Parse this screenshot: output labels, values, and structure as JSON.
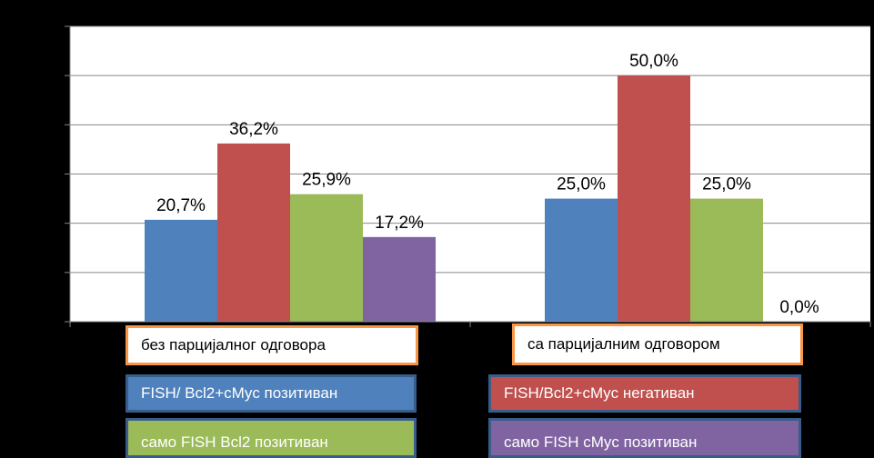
{
  "chart_data": {
    "type": "bar",
    "categories": [
      "без парцијалног одговора",
      "са парцијалним одговором"
    ],
    "series": [
      {
        "name": "FISH/ Bcl2+cMyc позитиван",
        "color": "#4f81bd",
        "values": [
          20.7,
          25.0
        ],
        "labels": [
          "20,7%",
          "25,0%"
        ]
      },
      {
        "name": "FISH/Bcl2+cMyc негативан",
        "color": "#c0504d",
        "values": [
          36.2,
          50.0
        ],
        "labels": [
          "36,2%",
          "50,0%"
        ]
      },
      {
        "name": "само FISH Bcl2 позитиван",
        "color": "#9bbb59",
        "values": [
          25.9,
          25.0
        ],
        "labels": [
          "25,9%",
          "25,0%"
        ]
      },
      {
        "name": "само FISH cMyc позитиван",
        "color": "#8064a2",
        "values": [
          17.2,
          0.0
        ],
        "labels": [
          "17,2%",
          "0,0%"
        ]
      }
    ],
    "ylim": [
      0,
      60
    ],
    "grid": true,
    "legend": "bottom"
  }
}
